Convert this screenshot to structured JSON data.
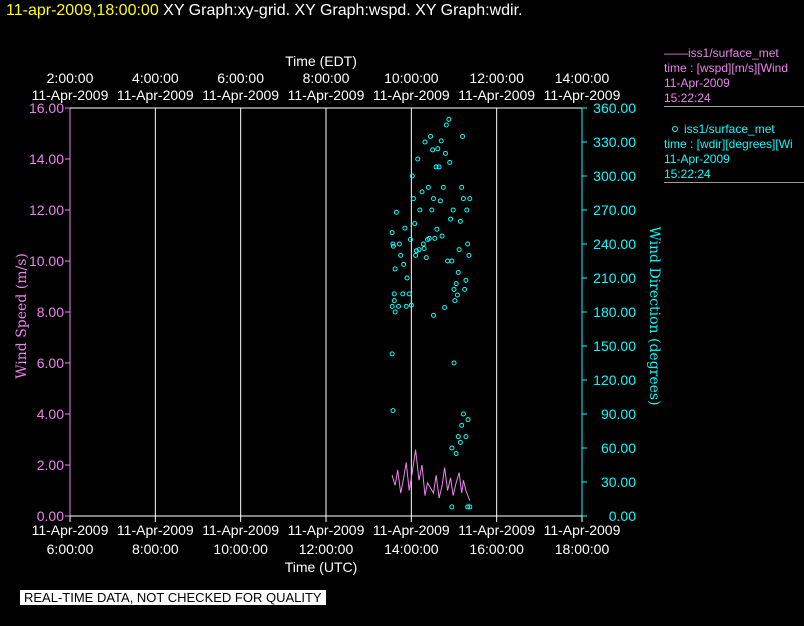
{
  "header": {
    "timestamp": "11-apr-2009,18:00:00",
    "graphs": "XY Graph:xy-grid.  XY Graph:wspd.  XY Graph:wdir."
  },
  "footer": {
    "note": "REAL-TIME DATA, NOT CHECKED FOR QUALITY"
  },
  "colors": {
    "wspd": "#ee82ee",
    "wdir": "#00ffff",
    "grid": "#ffffff",
    "title_time": "#ffff00"
  },
  "legend": {
    "wspd": {
      "line1": "——iss1/surface_met",
      "line2": "time : [wspd][m/s][Wind",
      "line3": "11-Apr-2009",
      "line4": "15:22:24"
    },
    "wdir": {
      "line1": "iss1/surface_met",
      "line2": "time : [wdir][degrees][Wi",
      "line3": "11-Apr-2009",
      "line4": "15:22:24",
      "marker_icon": "circle-marker-icon"
    }
  },
  "chart_data": {
    "type": "line",
    "top_axis": {
      "label": "Time (EDT)",
      "ticks": [
        {
          "hour": 2,
          "time": "2:00:00",
          "date": "11-Apr-2009"
        },
        {
          "hour": 4,
          "time": "4:00:00",
          "date": "11-Apr-2009"
        },
        {
          "hour": 6,
          "time": "6:00:00",
          "date": "11-Apr-2009"
        },
        {
          "hour": 8,
          "time": "8:00:00",
          "date": "11-Apr-2009"
        },
        {
          "hour": 10,
          "time": "10:00:00",
          "date": "11-Apr-2009"
        },
        {
          "hour": 12,
          "time": "12:00:00",
          "date": "11-Apr-2009"
        },
        {
          "hour": 14,
          "time": "14:00:00",
          "date": "11-Apr-2009"
        }
      ]
    },
    "bottom_axis": {
      "label": "Time (UTC)",
      "ticks": [
        {
          "hour": 6,
          "time": "6:00:00",
          "date": "11-Apr-2009"
        },
        {
          "hour": 8,
          "time": "8:00:00",
          "date": "11-Apr-2009"
        },
        {
          "hour": 10,
          "time": "10:00:00",
          "date": "11-Apr-2009"
        },
        {
          "hour": 12,
          "time": "12:00:00",
          "date": "11-Apr-2009"
        },
        {
          "hour": 14,
          "time": "14:00:00",
          "date": "11-Apr-2009"
        },
        {
          "hour": 16,
          "time": "16:00:00",
          "date": "11-Apr-2009"
        },
        {
          "hour": 18,
          "time": "18:00:00",
          "date": "11-Apr-2009"
        }
      ],
      "xlim_hours_utc": [
        6,
        18
      ]
    },
    "left_axis": {
      "label": "Wind Speed (m/s)",
      "ylim": [
        0,
        16
      ],
      "ticks": [
        "0.00",
        "2.00",
        "4.00",
        "6.00",
        "8.00",
        "10.00",
        "12.00",
        "14.00",
        "16.00"
      ]
    },
    "right_axis": {
      "label": "Wind Direction (degrees)",
      "ylim": [
        0,
        360
      ],
      "ticks": [
        "0.00",
        "30.00",
        "60.00",
        "90.00",
        "120.00",
        "150.00",
        "180.00",
        "210.00",
        "240.00",
        "270.00",
        "300.00",
        "330.00",
        "360.00"
      ]
    },
    "grid": {
      "vertical_lines_hours_utc": [
        8,
        10,
        12,
        14,
        16
      ]
    },
    "series": [
      {
        "name": "iss1/surface_met wspd",
        "type": "line",
        "axis": "left",
        "x_hours_utc": [
          13.55,
          13.62,
          13.68,
          13.75,
          13.82,
          13.88,
          13.95,
          14.02,
          14.1,
          14.18,
          14.25,
          14.32,
          14.38,
          14.45,
          14.52,
          14.58,
          14.65,
          14.72,
          14.78,
          14.85,
          14.92,
          14.98,
          15.05,
          15.12,
          15.18,
          15.22,
          15.28,
          15.37
        ],
        "values": [
          1.6,
          1.2,
          1.8,
          0.9,
          1.5,
          2.1,
          1.0,
          1.7,
          2.6,
          1.4,
          2.0,
          0.8,
          1.3,
          1.1,
          0.9,
          1.6,
          0.7,
          1.2,
          1.9,
          1.0,
          1.5,
          0.8,
          1.3,
          1.7,
          0.9,
          1.4,
          1.0,
          0.6
        ]
      },
      {
        "name": "iss1/surface_met wdir",
        "type": "scatter",
        "axis": "right",
        "x_hours_utc": [
          13.55,
          13.58,
          13.6,
          13.62,
          13.65,
          13.7,
          13.72,
          13.75,
          13.8,
          13.82,
          13.85,
          13.88,
          13.9,
          13.95,
          13.98,
          14.0,
          14.02,
          14.05,
          14.08,
          14.1,
          14.12,
          14.15,
          14.18,
          14.2,
          14.25,
          14.28,
          14.3,
          14.32,
          14.35,
          14.38,
          14.4,
          14.42,
          14.45,
          14.48,
          14.5,
          14.52,
          14.55,
          14.58,
          14.6,
          14.62,
          14.65,
          14.68,
          14.7,
          14.72,
          14.75,
          14.78,
          14.8,
          14.82,
          14.85,
          14.88,
          14.9,
          14.92,
          14.95,
          14.98,
          15.0,
          15.02,
          15.05,
          15.08,
          15.1,
          15.12,
          15.15,
          15.18,
          15.2,
          15.22,
          15.25,
          15.28,
          15.3,
          15.32,
          15.35,
          15.37,
          13.55,
          13.57,
          13.6,
          13.62,
          14.95,
          15.05,
          15.1,
          15.15,
          15.18,
          15.22,
          15.28,
          15.33
        ],
        "values": [
          185,
          238,
          196,
          218,
          268,
          185,
          240,
          230,
          196,
          222,
          254,
          185,
          210,
          196,
          244,
          186,
          300,
          280,
          258,
          230,
          234,
          315,
          235,
          270,
          286,
          240,
          236,
          330,
          228,
          244,
          290,
          245,
          335,
          270,
          323,
          280,
          245,
          308,
          253,
          324,
          308,
          278,
          331,
          247,
          290,
          184,
          320,
          345,
          225,
          350,
          312,
          262,
          225,
          270,
          200,
          190,
          205,
          195,
          215,
          235,
          260,
          290,
          335,
          280,
          200,
          208,
          270,
          240,
          230,
          280,
          250,
          240,
          190,
          180,
          60,
          55,
          70,
          65,
          80,
          90,
          70,
          85
        ]
      }
    ],
    "extra_points": {
      "note_free": true,
      "x_hours_utc": [
        13.55,
        13.57,
        15.0,
        14.52,
        14.95,
        15.37,
        15.32
      ],
      "values": [
        143,
        93,
        135,
        177,
        8,
        8,
        8
      ]
    }
  }
}
